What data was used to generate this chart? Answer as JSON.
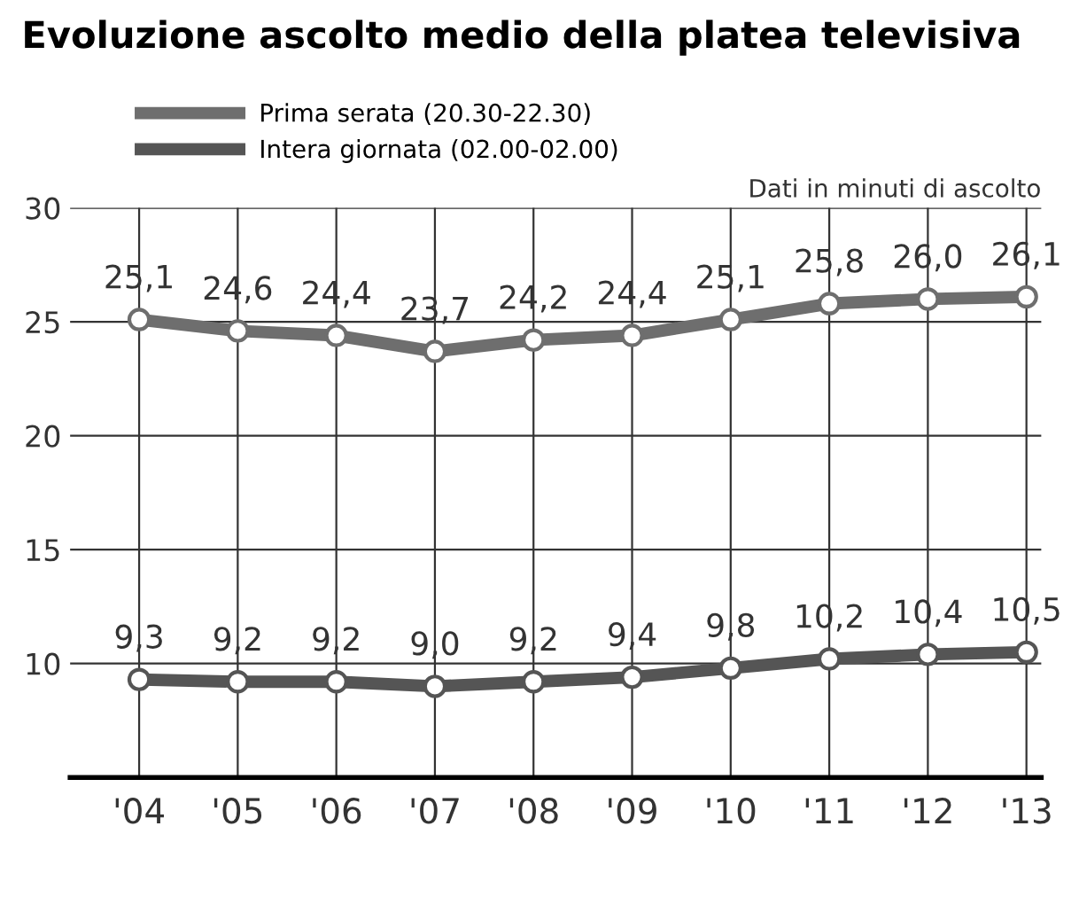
{
  "chart_data": {
    "type": "line",
    "title": "Evoluzione ascolto medio della platea televisiva",
    "categories": [
      "'04",
      "'05",
      "'06",
      "'07",
      "'08",
      "'09",
      "'10",
      "'11",
      "'12",
      "'13"
    ],
    "series": [
      {
        "name": "Prima serata (20.30-22.30)",
        "color": "#6e6e6e",
        "values": [
          25.1,
          24.6,
          24.4,
          23.7,
          24.2,
          24.4,
          25.1,
          25.8,
          26.0,
          26.1
        ],
        "value_labels": [
          "25,1",
          "24,6",
          "24,4",
          "23,7",
          "24,2",
          "24,4",
          "25,1",
          "25,8",
          "26,0",
          "26,1"
        ]
      },
      {
        "name": "Intera giornata (02.00-02.00)",
        "color": "#555555",
        "values": [
          9.3,
          9.2,
          9.2,
          9.0,
          9.2,
          9.4,
          9.8,
          10.2,
          10.4,
          10.5
        ],
        "value_labels": [
          "9,3",
          "9,2",
          "9,2",
          "9,0",
          "9,2",
          "9,4",
          "9,8",
          "10,2",
          "10,4",
          "10,5"
        ]
      }
    ],
    "ylim": [
      5,
      30
    ],
    "yticks": [
      {
        "value": 5,
        "label": null
      },
      10,
      15,
      20,
      25,
      30
    ],
    "grid": true,
    "legend": "top left",
    "marker": "circle",
    "line_style": "solid",
    "annotations": [
      "Dati in minuti di ascolto"
    ]
  }
}
